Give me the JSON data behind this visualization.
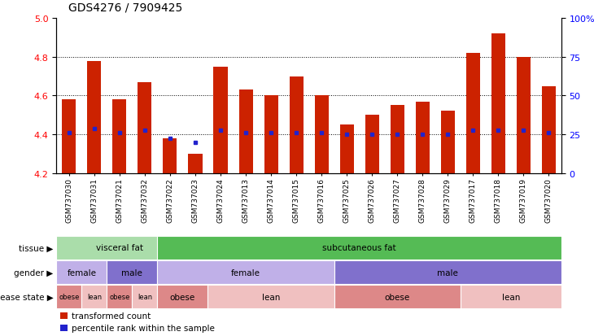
{
  "title": "GDS4276 / 7909425",
  "samples": [
    "GSM737030",
    "GSM737031",
    "GSM737021",
    "GSM737032",
    "GSM737022",
    "GSM737023",
    "GSM737024",
    "GSM737013",
    "GSM737014",
    "GSM737015",
    "GSM737016",
    "GSM737025",
    "GSM737026",
    "GSM737027",
    "GSM737028",
    "GSM737029",
    "GSM737017",
    "GSM737018",
    "GSM737019",
    "GSM737020"
  ],
  "bar_values": [
    4.58,
    4.78,
    4.58,
    4.67,
    4.38,
    4.3,
    4.75,
    4.63,
    4.6,
    4.7,
    4.6,
    4.45,
    4.5,
    4.55,
    4.57,
    4.52,
    4.82,
    4.92,
    4.8,
    4.65
  ],
  "percentile_values": [
    4.41,
    4.43,
    4.41,
    4.42,
    4.38,
    4.36,
    4.42,
    4.41,
    4.41,
    4.41,
    4.41,
    4.4,
    4.4,
    4.4,
    4.4,
    4.4,
    4.42,
    4.42,
    4.42,
    4.41
  ],
  "ylim_min": 4.2,
  "ylim_max": 5.0,
  "yticks_left": [
    4.2,
    4.4,
    4.6,
    4.8,
    5.0
  ],
  "right_yticks_pct": [
    0,
    25,
    50,
    75,
    100
  ],
  "right_ytick_labels": [
    "0",
    "25",
    "50",
    "75",
    "100%"
  ],
  "bar_color": "#cc2200",
  "percentile_color": "#2222cc",
  "annotation_rows": [
    {
      "label": "tissue",
      "segments": [
        {
          "text": "visceral fat",
          "start": 0,
          "end": 4,
          "color": "#aaddaa"
        },
        {
          "text": "subcutaneous fat",
          "start": 4,
          "end": 19,
          "color": "#55bb55"
        }
      ]
    },
    {
      "label": "gender",
      "segments": [
        {
          "text": "female",
          "start": 0,
          "end": 1,
          "color": "#c0b0e8"
        },
        {
          "text": "male",
          "start": 2,
          "end": 3,
          "color": "#8070cc"
        },
        {
          "text": "female",
          "start": 4,
          "end": 10,
          "color": "#c0b0e8"
        },
        {
          "text": "male",
          "start": 11,
          "end": 19,
          "color": "#8070cc"
        }
      ]
    },
    {
      "label": "disease state",
      "segments": [
        {
          "text": "obese",
          "start": 0,
          "end": 0,
          "color": "#dd8888"
        },
        {
          "text": "lean",
          "start": 1,
          "end": 1,
          "color": "#f0c0c0"
        },
        {
          "text": "obese",
          "start": 2,
          "end": 2,
          "color": "#dd8888"
        },
        {
          "text": "lean",
          "start": 3,
          "end": 3,
          "color": "#f0c0c0"
        },
        {
          "text": "obese",
          "start": 4,
          "end": 5,
          "color": "#dd8888"
        },
        {
          "text": "lean",
          "start": 6,
          "end": 10,
          "color": "#f0c0c0"
        },
        {
          "text": "obese",
          "start": 11,
          "end": 15,
          "color": "#dd8888"
        },
        {
          "text": "lean",
          "start": 16,
          "end": 19,
          "color": "#f0c0c0"
        }
      ]
    }
  ],
  "legend_items": [
    {
      "label": "transformed count",
      "color": "#cc2200"
    },
    {
      "label": "percentile rank within the sample",
      "color": "#2222cc"
    }
  ],
  "grid_dotted_at": [
    4.4,
    4.6,
    4.8
  ],
  "xlabel_box_color": "#d8d8d8",
  "label_arrow": "▶"
}
